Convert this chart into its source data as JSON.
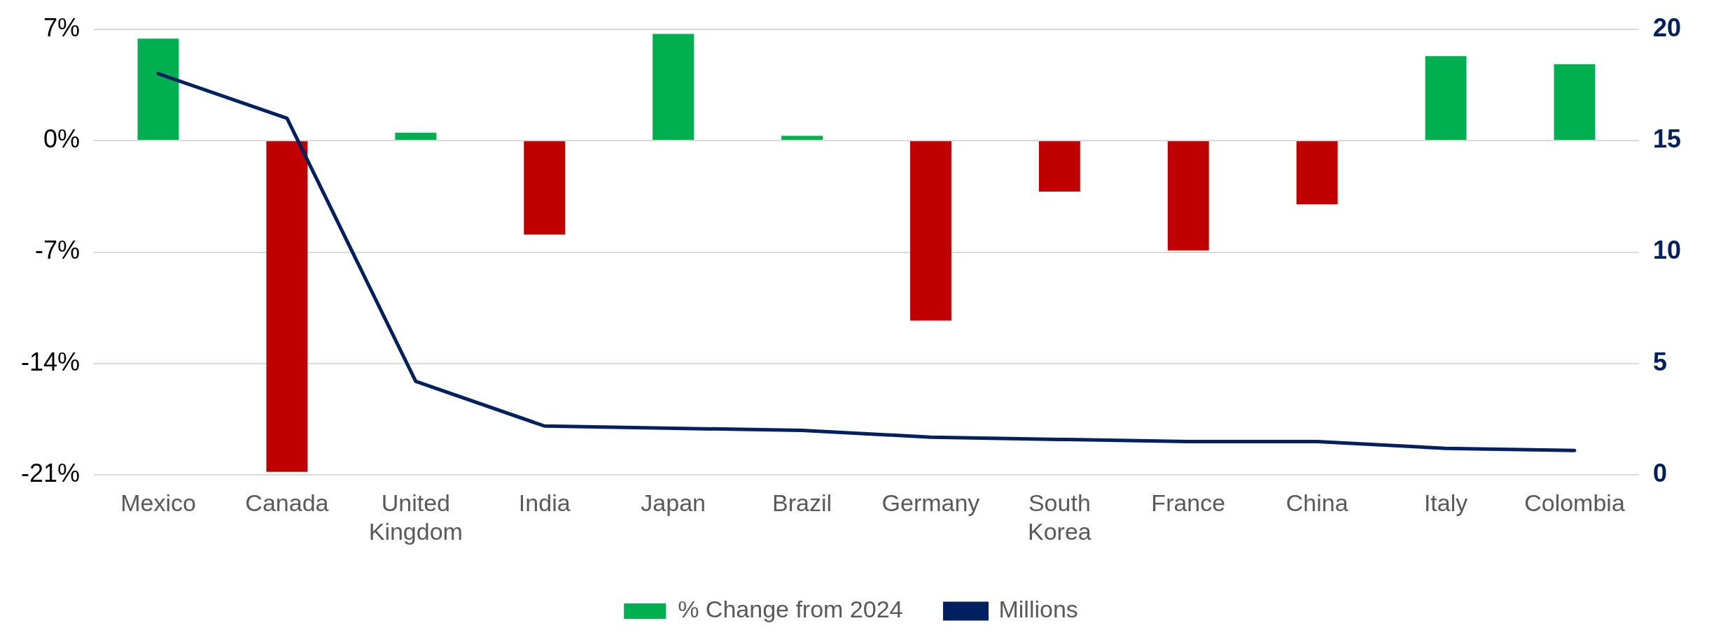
{
  "chart_data": {
    "type": "bar",
    "categories": [
      "Mexico",
      "Canada",
      "United Kingdom",
      "India",
      "Japan",
      "Brazil",
      "Germany",
      "South Korea",
      "France",
      "China",
      "Italy",
      "Colombia"
    ],
    "series": [
      {
        "name": "% Change from 2024",
        "colors": [
          "#00b050",
          "#c00000",
          "#00b050",
          "#c00000",
          "#00b050",
          "#00b050",
          "#c00000",
          "#c00000",
          "#c00000",
          "#c00000",
          "#00b050",
          "#00b050"
        ],
        "values": [
          6.4,
          -20.8,
          0.5,
          -5.9,
          6.7,
          0.3,
          -11.3,
          -3.2,
          -6.9,
          -4.0,
          5.3,
          4.8
        ]
      },
      {
        "name": "Millions",
        "type": "line",
        "axis": "y2",
        "color": "#002060",
        "values": [
          18.0,
          16.0,
          4.2,
          2.2,
          2.1,
          2.0,
          1.7,
          1.6,
          1.5,
          1.5,
          1.2,
          1.1
        ]
      }
    ],
    "ylim": [
      -21,
      7
    ],
    "yticks": [
      {
        "value": -21,
        "label": "-21%"
      },
      {
        "value": -14,
        "label": "-14%"
      },
      {
        "value": -7,
        "label": "-7%"
      },
      {
        "value": 0,
        "label": "0%"
      },
      {
        "value": 7,
        "label": "7%"
      }
    ],
    "y2lim": [
      0,
      20
    ],
    "y2ticks": [
      0,
      5,
      10,
      15,
      20
    ],
    "grid": "y",
    "legend": "bottom",
    "marker": "none"
  }
}
